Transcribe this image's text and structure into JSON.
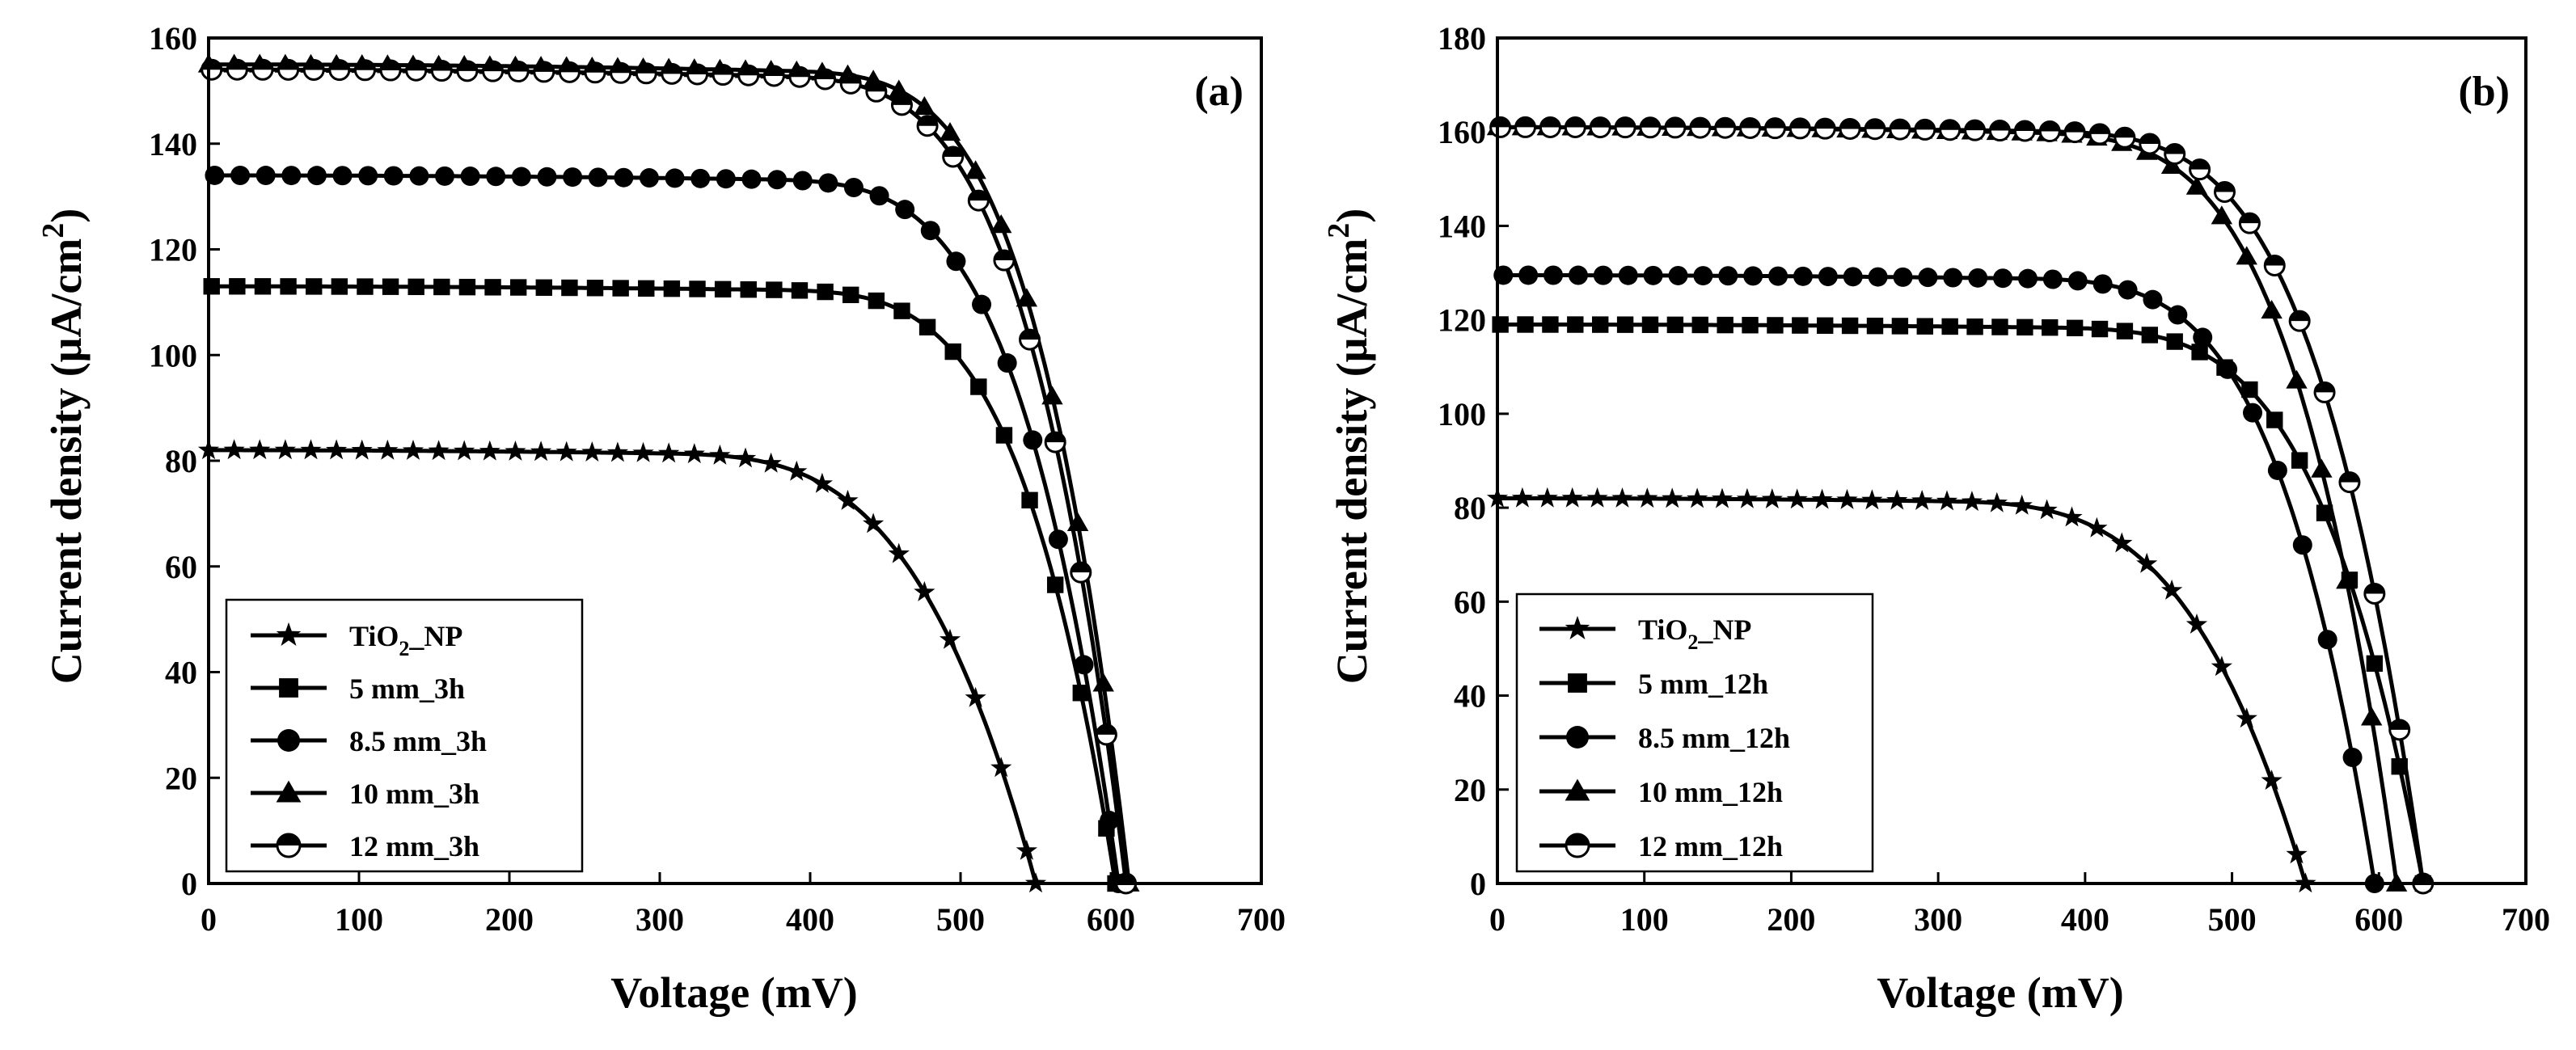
{
  "chart_data": [
    {
      "type": "line",
      "panel_label": "(a)",
      "xlabel": "Voltage (mV)",
      "ylabel": "Current density (μA/cm²)",
      "ylabel_main": "Current density (",
      "ylabel_mu": "μ",
      "ylabel_unit": "A/cm",
      "ylabel_sup": "2",
      "ylabel_close": ")",
      "xlim": [
        0,
        700
      ],
      "ylim": [
        0,
        160
      ],
      "xticks": [
        0,
        100,
        200,
        300,
        400,
        500,
        600,
        700
      ],
      "yticks": [
        0,
        20,
        40,
        60,
        80,
        100,
        120,
        140,
        160
      ],
      "legend_position": "bottom-left",
      "series": [
        {
          "name": "TiO2_NP",
          "label_main": "TiO",
          "label_sub": "2",
          "label_rest": "_NP",
          "marker": "star",
          "Isc": 82,
          "Voc": 550,
          "knee": 0.74,
          "a": 0.025,
          "b": 2.3,
          "p": 3.4
        },
        {
          "name": "5 mm_3h",
          "label_main": "5 mm_3h",
          "marker": "square",
          "Isc": 113,
          "Voc": 603,
          "knee": 0.82,
          "a": 0.015,
          "b": 2.5,
          "p": 4
        },
        {
          "name": "8.5 mm_3h",
          "label_main": "8.5 mm_3h",
          "marker": "circle",
          "Isc": 134,
          "Voc": 605,
          "knee": 0.8,
          "a": 0.015,
          "b": 2.5,
          "p": 4
        },
        {
          "name": "10 mm_3h",
          "label_main": "10 mm_3h",
          "marker": "triangle",
          "Isc": 155,
          "Voc": 612,
          "knee": 0.83,
          "a": 0.02,
          "b": 2.5,
          "p": 4
        },
        {
          "name": "12 mm_3h",
          "label_main": "12 mm_3h",
          "marker": "halfcircle",
          "Isc": 154,
          "Voc": 610,
          "knee": 0.8,
          "a": 0.02,
          "b": 2.5,
          "p": 4
        }
      ]
    },
    {
      "type": "line",
      "panel_label": "(b)",
      "xlabel": "Voltage (mV)",
      "ylabel": "Current density (μA/cm²)",
      "ylabel_main": "Current density (",
      "ylabel_mu": "μ",
      "ylabel_unit": "A/cm",
      "ylabel_sup": "2",
      "ylabel_close": ")",
      "xlim": [
        0,
        700
      ],
      "ylim": [
        0,
        180
      ],
      "xticks": [
        0,
        100,
        200,
        300,
        400,
        500,
        600,
        700
      ],
      "yticks": [
        0,
        20,
        40,
        60,
        80,
        100,
        120,
        140,
        160,
        180
      ],
      "legend_position": "bottom-left",
      "series": [
        {
          "name": "TiO2_NP",
          "label_main": "TiO",
          "label_sub": "2",
          "label_rest": "_NP",
          "marker": "star",
          "Isc": 82,
          "Voc": 550,
          "knee": 0.74,
          "a": 0.025,
          "b": 2.3,
          "p": 3.4
        },
        {
          "name": "5 mm_12h",
          "label_main": "5 mm_12h",
          "marker": "square",
          "Isc": 119,
          "Voc": 630,
          "knee": 0.78,
          "a": 0.015,
          "b": 2.5,
          "p": 4
        },
        {
          "name": "8.5 mm_12h",
          "label_main": "8.5 mm_12h",
          "marker": "circle",
          "Isc": 129.5,
          "Voc": 597,
          "knee": 0.78,
          "a": 0.015,
          "b": 2.5,
          "p": 4
        },
        {
          "name": "10 mm_12h",
          "label_main": "10 mm_12h",
          "marker": "triangle",
          "Isc": 161,
          "Voc": 612,
          "knee": 0.76,
          "a": 0.02,
          "b": 2.5,
          "p": 4
        },
        {
          "name": "12 mm_12h",
          "label_main": "12 mm_12h",
          "marker": "halfcircle",
          "Isc": 161,
          "Voc": 630,
          "knee": 0.76,
          "a": 0.015,
          "b": 2.5,
          "p": 4
        }
      ]
    }
  ]
}
